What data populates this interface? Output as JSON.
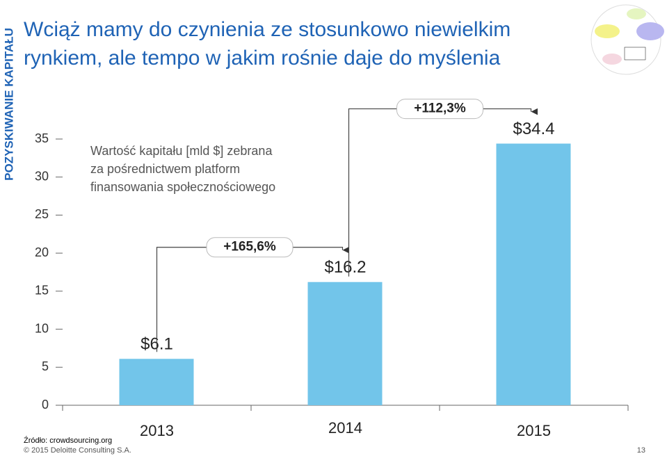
{
  "side_label": "POZYSKIWANIE KAPITAŁU",
  "chart_data": {
    "type": "bar",
    "title": [
      "Wciąż mamy do czynienia ze stosunkowo niewielkim",
      "rynkiem, ale tempo w jakim rośnie daje do myślenia"
    ],
    "subtitle": [
      "Wartość kapitału [mld $] zebrana",
      "za pośrednictwem platform",
      "finansowania społecznościowego"
    ],
    "categories": [
      "2013",
      "2014",
      "2015"
    ],
    "values": [
      6.1,
      16.2,
      34.4
    ],
    "value_labels": [
      "$6.1",
      "$16.2",
      "$34.4"
    ],
    "color": "#72c5ea",
    "ylim": [
      0,
      35
    ],
    "yticks": [
      0,
      5,
      10,
      15,
      20,
      25,
      30,
      35
    ],
    "annotations": [
      "+165,6%",
      "+112,3%"
    ]
  },
  "footer": {
    "source": "Źródło: crowdsourcing.org",
    "copyright": "© 2015 Deloitte Consulting S.A.",
    "page": "13"
  }
}
